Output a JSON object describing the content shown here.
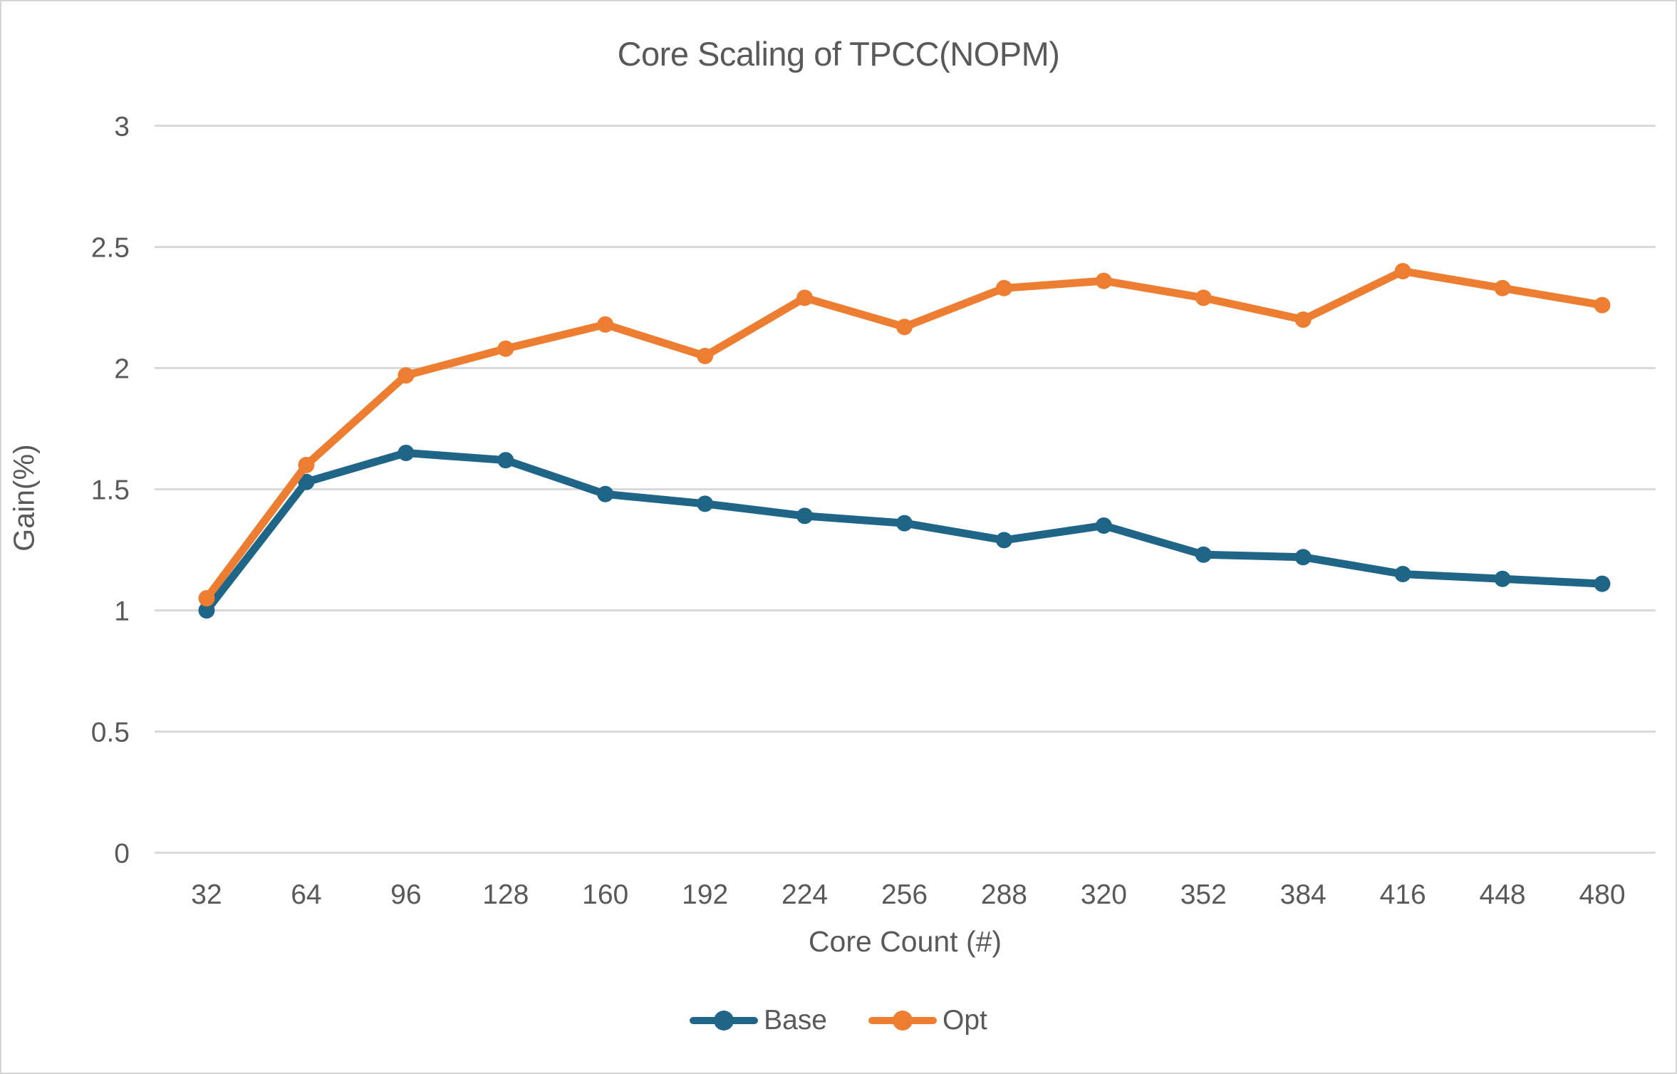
{
  "chart": {
    "title": "Core Scaling of TPCC(NOPM)",
    "xlabel": "Core Count (#)",
    "ylabel": "Gain(%)"
  },
  "chart_data": {
    "type": "line",
    "title": "Core Scaling of TPCC(NOPM)",
    "xlabel": "Core Count (#)",
    "ylabel": "Gain(%)",
    "categories": [
      32,
      64,
      96,
      128,
      160,
      192,
      224,
      256,
      288,
      320,
      352,
      384,
      416,
      448,
      480
    ],
    "series": [
      {
        "name": "Base",
        "color": "#1F6587",
        "values": [
          1.0,
          1.53,
          1.65,
          1.62,
          1.48,
          1.44,
          1.39,
          1.36,
          1.29,
          1.35,
          1.23,
          1.22,
          1.15,
          1.13,
          1.11
        ]
      },
      {
        "name": "Opt",
        "color": "#ED7D31",
        "values": [
          1.05,
          1.6,
          1.97,
          2.08,
          2.18,
          2.05,
          2.29,
          2.17,
          2.33,
          2.36,
          2.29,
          2.2,
          2.4,
          2.33,
          2.26
        ]
      }
    ],
    "ylim": [
      0,
      3
    ],
    "yticks": [
      0,
      0.5,
      1,
      1.5,
      2,
      2.5,
      3
    ],
    "grid": "horizontal",
    "legend_position": "bottom",
    "marker": "circle"
  },
  "colors": {
    "grid": "#D9D9D9",
    "text": "#595959",
    "frame_border": "#D5D5D5",
    "background": "#FFFFFF"
  }
}
